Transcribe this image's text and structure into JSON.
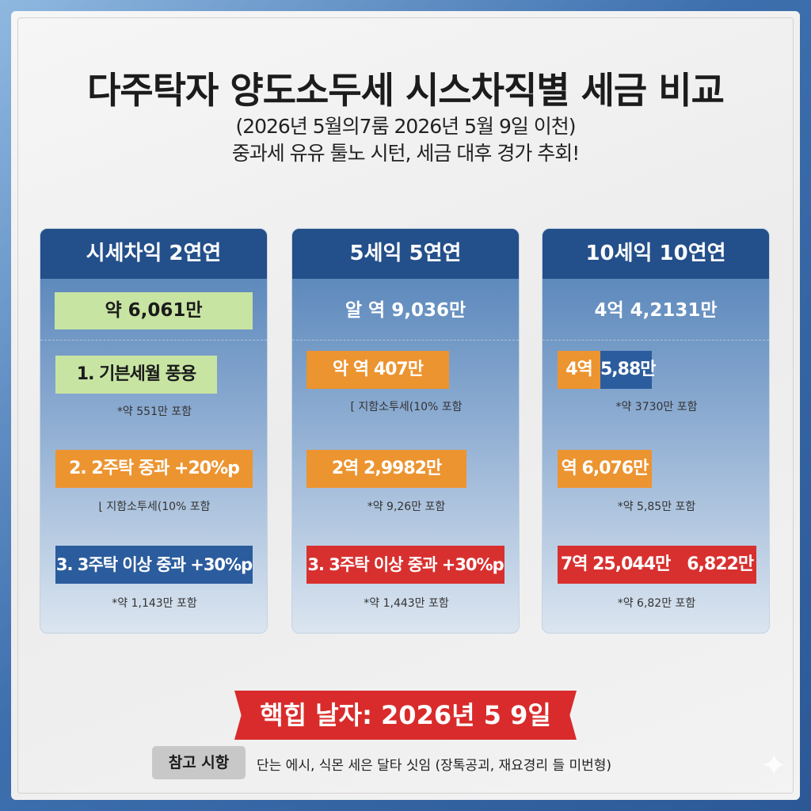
{
  "title": "다주탁자 양도소두세 시스차직별 세금 비교",
  "subtitle1": "(2026년 5월의7룸 2026년 5월 9일 이천)",
  "subtitle2": "중과세 유유 툴노 시턴, 세금 대후 경가 추회!",
  "colors": {
    "header": "#234f8a",
    "green": "#c7e4a3",
    "orange": "#ec9430",
    "blue": "#2b5c9d",
    "red": "#d8302f"
  },
  "cards": [
    {
      "header": "시세차익 2연연",
      "main": "약 6,061만",
      "items": [
        {
          "label": "1. 기븐세월 풍용",
          "note": "*약 551만 포함"
        },
        {
          "label": "2. 2주탁 중과 +20%p",
          "note": "⌊ 지함소투세(10% 포함"
        },
        {
          "label": "3. 3주탁 이상 중과 +30%p",
          "note": "*약 1,143만 포함"
        }
      ]
    },
    {
      "header": "5세익 5연연",
      "main": "알 역 9,036만",
      "items": [
        {
          "label": "악 역 407만",
          "note": "[ 지함소투세(10% 포함"
        },
        {
          "label": "2역 2,9982만",
          "note": "*약 9,26만 포함"
        },
        {
          "label": "3. 3주탁 이상 중과 +30%p",
          "note": "*약 1,443만 포함"
        }
      ]
    },
    {
      "header": "10세익 10연연",
      "main": "4억 4,2131만",
      "items": [
        {
          "label_a": "4역",
          "label_b": "5,88만",
          "note": "*약 3730만 포함"
        },
        {
          "label": "역 6,076만",
          "note": "*약 5,85만 포함"
        },
        {
          "label": "7역 25,044만　6,822만",
          "note": "*약 6,82만 포함"
        }
      ]
    }
  ],
  "banner": "핵힙 날자: 2026년 5 9일",
  "reference": {
    "label": "참고 시항",
    "text": "단는 에시, 식몬 세은 달타 싯임 (장톡공괴, 재요경리 들 미번형)"
  }
}
